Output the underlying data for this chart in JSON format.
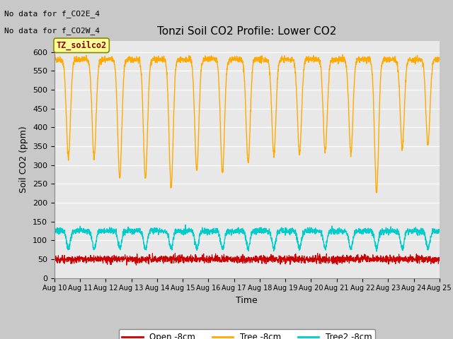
{
  "title": "Tonzi Soil CO2 Profile: Lower CO2",
  "xlabel": "Time",
  "ylabel": "Soil CO2 (ppm)",
  "ylim": [
    0,
    630
  ],
  "yticks": [
    0,
    50,
    100,
    150,
    200,
    250,
    300,
    350,
    400,
    450,
    500,
    550,
    600
  ],
  "no_data_text1": "No data for f_CO2E_4",
  "no_data_text2": "No data for f_CO2W_4",
  "legend_label1": "Open -8cm",
  "legend_label2": "Tree -8cm",
  "legend_label3": "Tree2 -8cm",
  "color_open": "#cc0000",
  "color_tree": "#ffaa00",
  "color_tree2": "#00cccc",
  "legend_box_color": "#ffff99",
  "legend_box_edge": "#888800",
  "legend_box_text": "TZ_soilco2",
  "fig_bg_color": "#c8c8c8",
  "plot_bg_color": "#e8e8e8",
  "n_days": 15,
  "pts_per_day": 144,
  "tree_peak": 580,
  "open_mean": 50,
  "open_noise": 5
}
